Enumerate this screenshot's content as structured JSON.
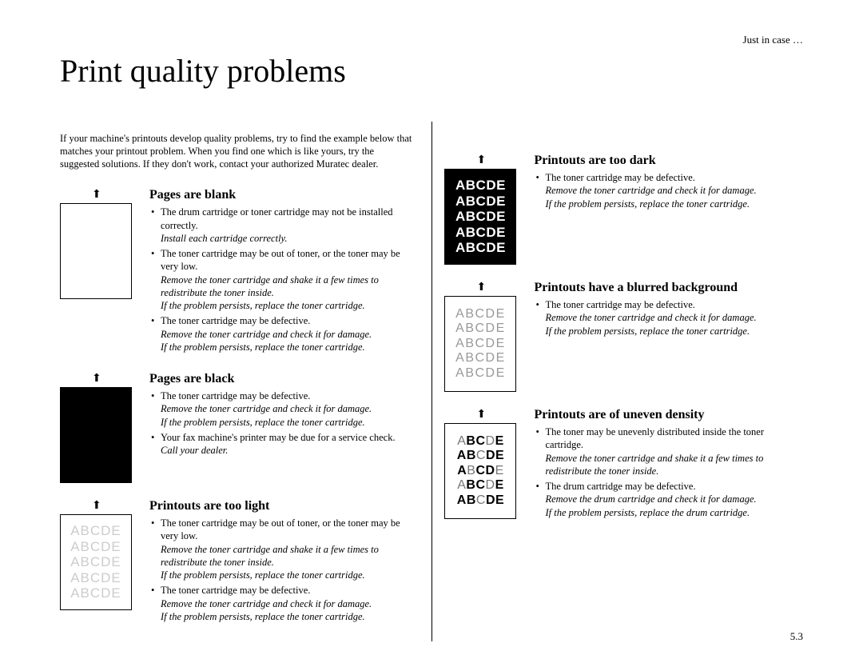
{
  "header": {
    "section": "Just in case …"
  },
  "title": "Print quality problems",
  "intro": "If your machine's printouts develop quality problems, try to find the example below that matches your printout problem. When you find one which is like yours, try the suggested solutions. If they don't work, contact your authorized Muratec dealer.",
  "leftColumn": [
    {
      "title": "Pages are blank",
      "thumbType": "blank",
      "arrow": "⬆",
      "bullets": [
        {
          "text": "The drum cartridge or toner cartridge may not be installed correctly.",
          "solution": "Install each cartridge correctly."
        },
        {
          "text": "The toner cartridge may be out of toner, or the toner may be very low.",
          "solution": "Remove the toner cartridge and shake it a few times to redistribute the toner inside.\nIf the problem persists, replace the toner cartridge."
        },
        {
          "text": "The toner cartridge may be defective.",
          "solution": "Remove the toner cartridge and check it for damage.\nIf the problem persists, replace the toner cartridge."
        }
      ]
    },
    {
      "title": "Pages are black",
      "thumbType": "black",
      "arrow": "⬆",
      "bullets": [
        {
          "text": "The toner cartridge may be defective.",
          "solution": "Remove the toner cartridge and check it for damage.\nIf the problem persists, replace the toner cartridge."
        },
        {
          "text": "Your fax machine's printer may be due for a service check.",
          "solution": "Call your dealer."
        }
      ]
    },
    {
      "title": "Printouts are too light",
      "thumbType": "light",
      "arrow": "⬆",
      "sampleLines": [
        "ABCDE",
        "ABCDE",
        "ABCDE",
        "ABCDE",
        "ABCDE"
      ],
      "bullets": [
        {
          "text": "The toner cartridge may be out of toner, or the toner may be very low.",
          "solution": "Remove the toner cartridge and shake it a few times to redistribute the toner inside.\nIf the problem persists, replace the toner cartridge."
        },
        {
          "text": "The toner cartridge may be defective.",
          "solution": "Remove the toner cartridge and check it for damage.\nIf the problem persists, replace the toner cartridge."
        }
      ]
    }
  ],
  "rightColumn": [
    {
      "title": "Printouts are too dark",
      "thumbType": "dark",
      "arrow": "⬆",
      "sampleLines": [
        "ABCDE",
        "ABCDE",
        "ABCDE",
        "ABCDE",
        "ABCDE"
      ],
      "bullets": [
        {
          "text": "The toner cartridge may be defective.",
          "solution": "Remove the toner cartridge and check it for damage.\nIf the problem persists, replace the toner cartridge."
        }
      ]
    },
    {
      "title": "Printouts have a blurred background",
      "thumbType": "blur",
      "arrow": "⬆",
      "sampleLines": [
        "ABCDE",
        "ABCDE",
        "ABCDE",
        "ABCDE",
        "ABCDE"
      ],
      "bullets": [
        {
          "text": "The toner cartridge may be defective.",
          "solution": "Remove the toner cartridge and check it for damage.\nIf the problem persists, replace the toner cartridge."
        }
      ]
    },
    {
      "title": "Printouts are of uneven density",
      "thumbType": "uneven",
      "arrow": "⬆",
      "sampleLines": [
        "ABCDE",
        "ABCDE",
        "ABCDE",
        "ABCDE",
        "ABCDE"
      ],
      "bullets": [
        {
          "text": "The toner may be unevenly distributed inside the toner cartridge.",
          "solution": "Remove the toner cartridge and shake it a few times to redistribute the toner inside."
        },
        {
          "text": "The drum cartridge may be defective.",
          "solution": "Remove the drum cartridge and check it for damage.\nIf the problem persists, replace the drum cartridge."
        }
      ]
    }
  ],
  "pageNumber": "5.3",
  "colors": {
    "text": "#000000",
    "lightGray": "#cccccc",
    "midGray": "#999999",
    "background": "#ffffff"
  }
}
